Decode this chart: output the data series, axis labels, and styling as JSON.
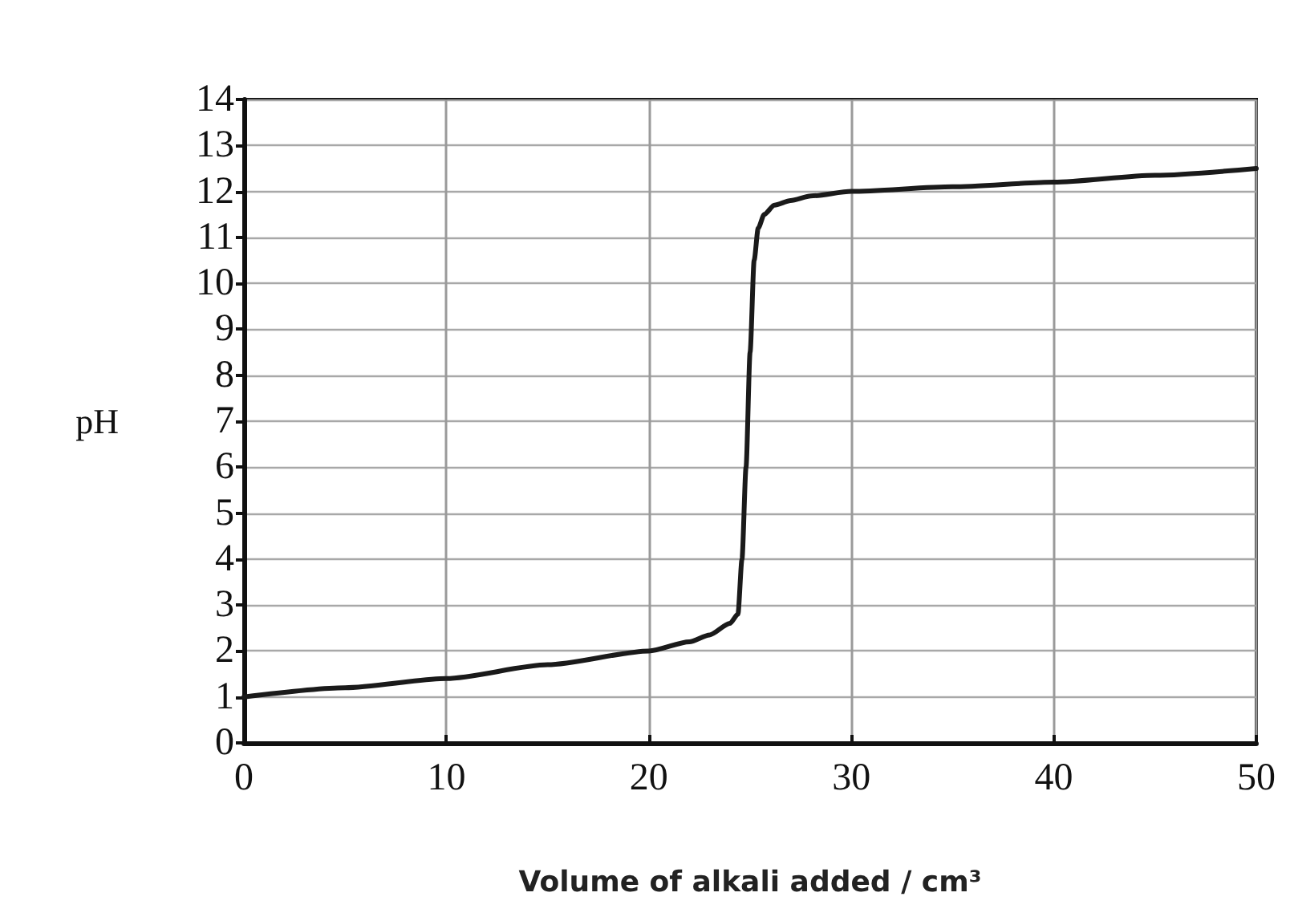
{
  "chart_data": {
    "type": "line",
    "xlabel": "Volume of alkali added / cm³",
    "ylabel": "pH",
    "x": [
      0,
      5,
      10,
      15,
      20,
      22,
      23,
      24,
      24.4,
      24.6,
      24.8,
      25,
      25.2,
      25.4,
      25.7,
      26.2,
      27,
      28,
      30,
      35,
      40,
      45,
      50
    ],
    "values": [
      1.0,
      1.2,
      1.4,
      1.7,
      2.0,
      2.2,
      2.35,
      2.6,
      2.8,
      4.0,
      6.0,
      8.5,
      10.5,
      11.2,
      11.5,
      11.7,
      11.8,
      11.9,
      12.0,
      12.1,
      12.2,
      12.35,
      12.5
    ],
    "color": "#1a1a1a",
    "line_style": "solid",
    "marker": "none",
    "xlim": [
      0,
      50
    ],
    "xticks": [
      0,
      10,
      20,
      30,
      40,
      50
    ],
    "ylim": [
      0,
      14
    ],
    "yticks": [
      0,
      1,
      2,
      3,
      4,
      5,
      6,
      7,
      8,
      9,
      10,
      11,
      12,
      13,
      14
    ],
    "grid": true
  }
}
